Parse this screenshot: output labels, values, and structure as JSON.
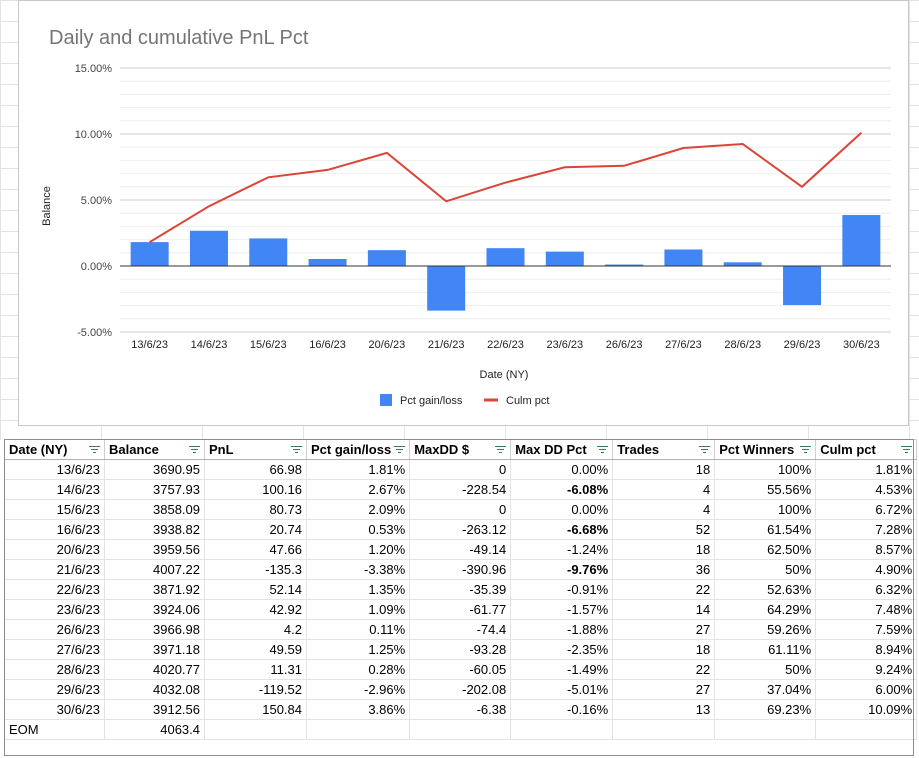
{
  "chart": {
    "title": "Daily and cumulative PnL Pct",
    "ylabel": "Balance",
    "xlabel": "Date (NY)",
    "legend": [
      "Pct gain/loss",
      "Culm pct"
    ]
  },
  "chart_data": {
    "type": "bar",
    "title": "Daily and cumulative PnL Pct",
    "xlabel": "Date (NY)",
    "ylabel": "Balance",
    "ylim": [
      -0.05,
      0.15
    ],
    "y_ticks": [
      "15.00%",
      "10.00%",
      "5.00%",
      "0.00%",
      "-5.00%"
    ],
    "y_tick_values": [
      0.15,
      0.1,
      0.05,
      0.0,
      -0.05
    ],
    "categories": [
      "13/6/23",
      "14/6/23",
      "15/6/23",
      "16/6/23",
      "20/6/23",
      "21/6/23",
      "22/6/23",
      "23/6/23",
      "26/6/23",
      "27/6/23",
      "28/6/23",
      "29/6/23",
      "30/6/23"
    ],
    "series": [
      {
        "name": "Pct gain/loss",
        "type": "bar",
        "color": "#4285f4",
        "values": [
          0.0181,
          0.0267,
          0.0209,
          0.0053,
          0.012,
          -0.0338,
          0.0135,
          0.0109,
          0.0011,
          0.0125,
          0.0028,
          -0.0296,
          0.0386
        ]
      },
      {
        "name": "Culm pct",
        "type": "line",
        "color": "#db4437",
        "values": [
          0.0181,
          0.0453,
          0.0672,
          0.0728,
          0.0857,
          0.049,
          0.0632,
          0.0748,
          0.0759,
          0.0894,
          0.0924,
          0.06,
          0.1009
        ]
      }
    ],
    "legend_position": "bottom",
    "grid": true
  },
  "table": {
    "headers": [
      "Date (NY)",
      "Balance",
      "PnL",
      "Pct gain/loss",
      "MaxDD $",
      "Max DD Pct",
      "Trades",
      "Pct Winners",
      "Culm pct"
    ],
    "rows": [
      [
        "13/6/23",
        "3690.95",
        "66.98",
        "1.81%",
        "0",
        "0.00%",
        "18",
        "100%",
        "1.81%"
      ],
      [
        "14/6/23",
        "3757.93",
        "100.16",
        "2.67%",
        "-228.54",
        "-6.08%",
        "4",
        "55.56%",
        "4.53%"
      ],
      [
        "15/6/23",
        "3858.09",
        "80.73",
        "2.09%",
        "0",
        "0.00%",
        "4",
        "100%",
        "6.72%"
      ],
      [
        "16/6/23",
        "3938.82",
        "20.74",
        "0.53%",
        "-263.12",
        "-6.68%",
        "52",
        "61.54%",
        "7.28%"
      ],
      [
        "20/6/23",
        "3959.56",
        "47.66",
        "1.20%",
        "-49.14",
        "-1.24%",
        "18",
        "62.50%",
        "8.57%"
      ],
      [
        "21/6/23",
        "4007.22",
        "-135.3",
        "-3.38%",
        "-390.96",
        "-9.76%",
        "36",
        "50%",
        "4.90%"
      ],
      [
        "22/6/23",
        "3871.92",
        "52.14",
        "1.35%",
        "-35.39",
        "-0.91%",
        "22",
        "52.63%",
        "6.32%"
      ],
      [
        "23/6/23",
        "3924.06",
        "42.92",
        "1.09%",
        "-61.77",
        "-1.57%",
        "14",
        "64.29%",
        "7.48%"
      ],
      [
        "26/6/23",
        "3966.98",
        "4.2",
        "0.11%",
        "-74.4",
        "-1.88%",
        "27",
        "59.26%",
        "7.59%"
      ],
      [
        "27/6/23",
        "3971.18",
        "49.59",
        "1.25%",
        "-93.28",
        "-2.35%",
        "18",
        "61.11%",
        "8.94%"
      ],
      [
        "28/6/23",
        "4020.77",
        "11.31",
        "0.28%",
        "-60.05",
        "-1.49%",
        "22",
        "50%",
        "9.24%"
      ],
      [
        "29/6/23",
        "4032.08",
        "-119.52",
        "-2.96%",
        "-202.08",
        "-5.01%",
        "27",
        "37.04%",
        "6.00%"
      ],
      [
        "30/6/23",
        "3912.56",
        "150.84",
        "3.86%",
        "-6.38",
        "-0.16%",
        "13",
        "69.23%",
        "10.09%"
      ]
    ],
    "bold_maxdd_rows": [
      1,
      3,
      5
    ],
    "footer": [
      "EOM",
      "4063.4"
    ]
  }
}
